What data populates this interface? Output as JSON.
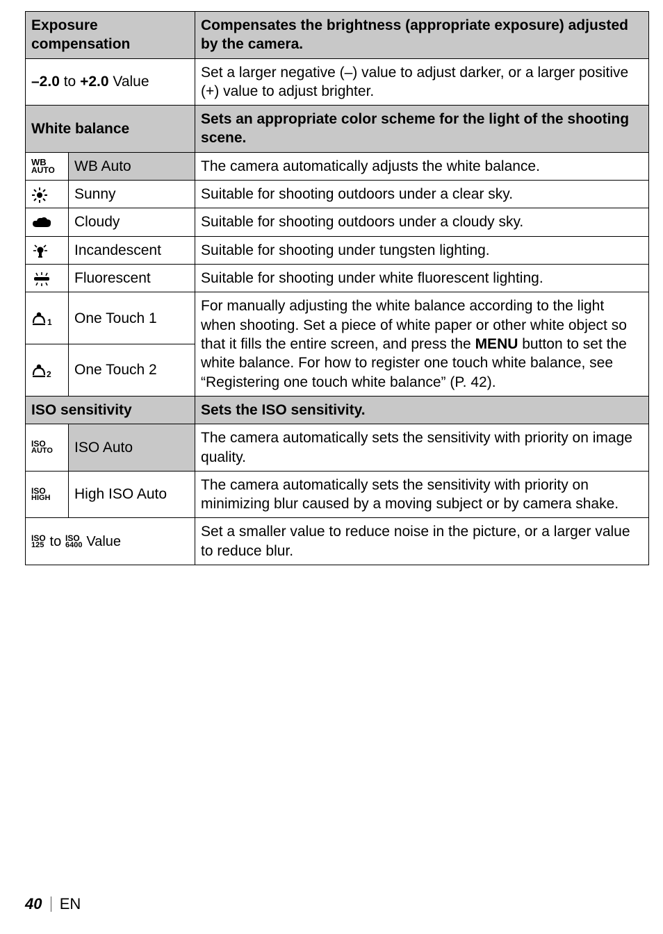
{
  "table": {
    "col_widths": [
      "62px",
      "180px",
      "auto"
    ],
    "sections": [
      {
        "header_label": "Exposure compensation",
        "header_desc": "Compensates the brightness (appropriate exposure) adjusted by the camera.",
        "rows": [
          {
            "span_label_html": "<b>–2.0</b> to <b>+2.0</b> Value",
            "desc": "Set a larger negative (–) value to adjust darker, or a larger positive (+) value to adjust brighter."
          }
        ]
      },
      {
        "header_label": "White balance",
        "header_desc": "Sets an appropriate color scheme for the light of the shooting scene.",
        "rows": [
          {
            "icon": "wb-auto",
            "label": "WB Auto",
            "label_bg": "#c8c8c8",
            "desc": "The camera automatically adjusts the white balance."
          },
          {
            "icon": "sunny",
            "label": "Sunny",
            "desc": "Suitable for shooting outdoors under a clear sky."
          },
          {
            "icon": "cloudy",
            "label": "Cloudy",
            "desc": "Suitable for shooting outdoors under a cloudy sky."
          },
          {
            "icon": "incandescent",
            "label": "Incandescent",
            "desc": "Suitable for shooting under tungsten lighting."
          },
          {
            "icon": "fluorescent",
            "label": "Fluorescent",
            "desc": "Suitable for shooting under white fluorescent lighting."
          },
          {
            "icon": "onetouch1",
            "label": "One Touch 1",
            "desc_pre": "For manually adjusting the white balance according to the light when shooting. Set a piece of white paper or other white object so that it fills the entire screen, and press the ",
            "desc_bold": "MENU",
            "desc_post": " button to set the white balance. For how to register one touch white balance, see “Registering one touch white balance” (P. 42).",
            "rowspan_desc": 2
          },
          {
            "icon": "onetouch2",
            "label": "One Touch 2"
          }
        ]
      },
      {
        "header_label": "ISO sensitivity",
        "header_desc": "Sets the ISO sensitivity.",
        "rows": [
          {
            "icon": "iso-auto",
            "label": "ISO Auto",
            "label_bg": "#c8c8c8",
            "desc": "The camera automatically sets the sensitivity with priority on image quality."
          },
          {
            "icon": "iso-high",
            "label": "High ISO Auto",
            "desc": "The camera automatically sets the sensitivity with priority on minimizing blur caused by a moving subject or by camera shake."
          },
          {
            "span_icon_html": true,
            "desc": "Set a smaller value to reduce noise in the picture, or a larger value to reduce blur."
          }
        ]
      }
    ]
  },
  "footer": {
    "page_number": "40",
    "lang": "EN"
  },
  "colors": {
    "header_bg": "#c8c8c8",
    "border": "#000000",
    "text": "#000000"
  }
}
